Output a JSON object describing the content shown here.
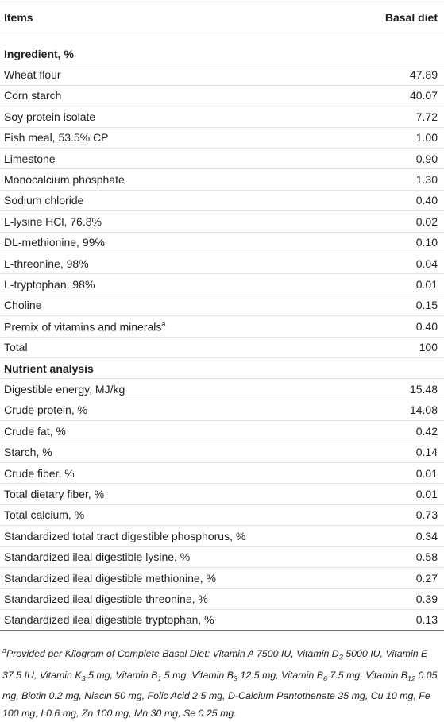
{
  "header": {
    "items": "Items",
    "basal": "Basal diet"
  },
  "sections": [
    {
      "title": "Ingredient, %",
      "rows": [
        {
          "label": "Wheat flour",
          "value": "47.89"
        },
        {
          "label": "Corn starch",
          "value": "40.07"
        },
        {
          "label": "Soy protein isolate",
          "value": "7.72"
        },
        {
          "label": "Fish meal, 53.5% CP",
          "value": "1.00"
        },
        {
          "label": "Limestone",
          "value": "0.90"
        },
        {
          "label": "Monocalcium phosphate",
          "value": "1.30"
        },
        {
          "label": "Sodium chloride",
          "value": "0.40"
        },
        {
          "label": "L-lysine HCl, 76.8%",
          "value": "0.02"
        },
        {
          "label": "DL-methionine, 99%",
          "value": "0.10"
        },
        {
          "label": "L-threonine, 98%",
          "value": "0.04"
        },
        {
          "label": "L-tryptophan, 98%",
          "value": "0.01"
        },
        {
          "label": "Choline",
          "value": "0.15"
        },
        {
          "label": "Premix of vitamins and minerals",
          "sup": "a",
          "value": "0.40"
        },
        {
          "label": "Total",
          "value": "100"
        }
      ]
    },
    {
      "title": "Nutrient analysis",
      "rows": [
        {
          "label": "Digestible energy, MJ/kg",
          "value": "15.48"
        },
        {
          "label": "Crude protein, %",
          "value": "14.08"
        },
        {
          "label": "Crude fat, %",
          "value": "0.42"
        },
        {
          "label": "Starch, %",
          "value": "0.14"
        },
        {
          "label": "Crude fiber, %",
          "value": "0.01"
        },
        {
          "label": "Total dietary fiber, %",
          "value": "0.01"
        },
        {
          "label": "Total calcium, %",
          "value": "0.73"
        },
        {
          "label": "Standardized total tract digestible phosphorus, %",
          "value": "0.34"
        },
        {
          "label": "Standardized ileal digestible lysine, %",
          "value": "0.58"
        },
        {
          "label": "Standardized ileal digestible methionine, %",
          "value": "0.27"
        },
        {
          "label": "Standardized ileal digestible threonine, %",
          "value": "0.39"
        },
        {
          "label": "Standardized ileal digestible tryptophan, %",
          "value": "0.13"
        }
      ]
    }
  ],
  "footnote": [
    {
      "sup": "a"
    },
    {
      "text": "Provided per Kilogram of Complete Basal Diet: Vitamin A 7500 IU, Vitamin D"
    },
    {
      "sub": "3"
    },
    {
      "text": " 5000 IU, Vitamin E 37.5 IU, Vitamin K"
    },
    {
      "sub": "3"
    },
    {
      "text": " 5 mg, Vitamin B"
    },
    {
      "sub": "1"
    },
    {
      "text": " 5 mg, Vitamin B"
    },
    {
      "sub": "3"
    },
    {
      "text": " 12.5 mg, Vitamin B"
    },
    {
      "sub": "6"
    },
    {
      "text": " 7.5 mg, Vitamin B"
    },
    {
      "sub": "12"
    },
    {
      "text": " 0.05 mg, Biotin 0.2 mg, Niacin 50 mg, Folic Acid 2.5 mg, D-Calcium Pantothenate 25 mg, Cu 10 mg, Fe 100 mg, I 0.6 mg, Zn 100 mg, Mn 30 mg, Se 0.25 mg."
    }
  ]
}
